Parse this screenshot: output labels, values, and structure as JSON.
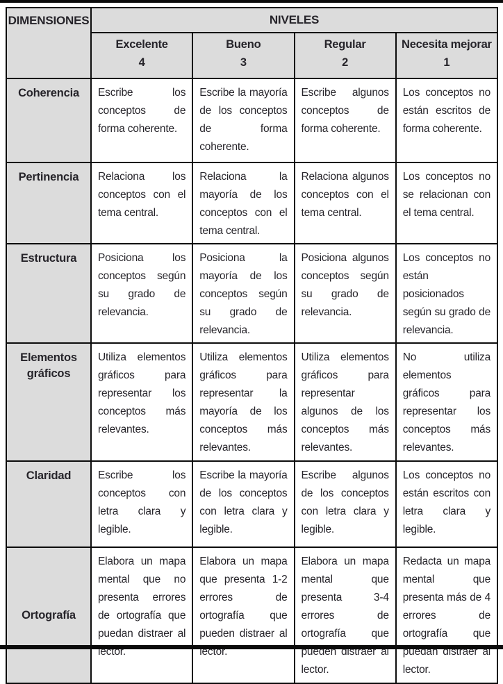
{
  "colors": {
    "header_bg": "#dcdcdc",
    "border": "#0c0c0c",
    "text": "#26242a",
    "rule": "#0b0b0b"
  },
  "table": {
    "dimensions_header": "DIMENSIONES",
    "levels_header": "NIVELES",
    "levels": [
      {
        "label": "Excelente",
        "score": "4"
      },
      {
        "label": "Bueno",
        "score": "3"
      },
      {
        "label": "Regular",
        "score": "2"
      },
      {
        "label": "Necesita mejorar",
        "score": "1"
      }
    ],
    "rows": [
      {
        "dimension": "Coherencia",
        "cells": [
          "Escribe los conceptos de forma coherente.",
          "Escribe la mayoría de los conceptos de forma coherente.",
          "Escribe algunos conceptos de forma coherente.",
          "Los conceptos no están escritos de forma coherente."
        ]
      },
      {
        "dimension": "Pertinencia",
        "cells": [
          "Relaciona los conceptos con el tema central.",
          "Relaciona la mayoría de los conceptos con el tema central.",
          "Relaciona algunos conceptos con el tema central.",
          "Los conceptos no se relacionan con el tema central."
        ]
      },
      {
        "dimension": "Estructura",
        "cells": [
          "Posiciona los conceptos según su grado de relevancia.",
          "Posiciona la mayoría de los conceptos según su grado de relevancia.",
          "Posiciona algunos conceptos según su grado de relevancia.",
          "Los conceptos no están posicionados según su grado de relevancia."
        ]
      },
      {
        "dimension": "Elementos gráficos",
        "cells": [
          "Utiliza elementos gráficos para representar los conceptos más relevantes.",
          "Utiliza elementos gráficos para representar la mayoría de los conceptos más relevantes.",
          "Utiliza elementos gráficos para representar algunos de los conceptos más relevantes.",
          "No utiliza elementos gráficos para representar los conceptos más relevantes."
        ]
      },
      {
        "dimension": "Claridad",
        "cells": [
          "Escribe los conceptos con letra clara y legible.",
          "Escribe la mayoría de los conceptos con letra clara y legible.",
          "Escribe algunos de los conceptos con letra clara y legible.",
          "Los conceptos no están escritos con letra clara y legible."
        ]
      },
      {
        "dimension": "Ortografía",
        "cells": [
          "Elabora un mapa mental que no presenta errores de ortografía que puedan distraer al lector.",
          "Elabora un mapa que presenta 1-2 errores de ortografía que pueden distraer al lector.",
          "Elabora un mapa mental que presenta 3-4 errores de ortografía que pueden distraer al lector.",
          "Redacta un mapa mental que presenta más de 4 errores de ortografía que puedan distraer al lector."
        ]
      }
    ]
  }
}
